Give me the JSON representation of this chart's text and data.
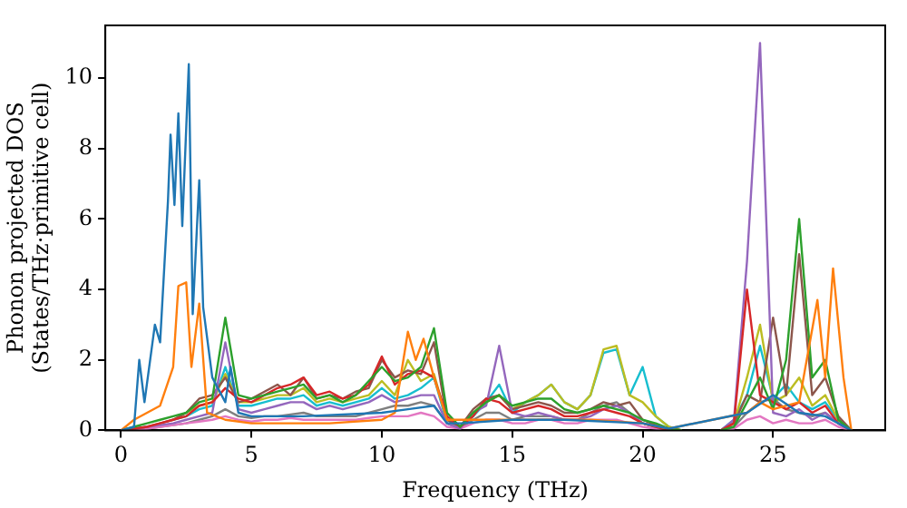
{
  "chart_data": {
    "type": "line",
    "xlabel": "Frequency (THz)",
    "ylabel": "Phonon projected DOS\n(States/THz·primitive cell)",
    "xlim": [
      -0.6,
      29.3
    ],
    "ylim": [
      0,
      11.5
    ],
    "xticks": [
      0,
      5,
      10,
      15,
      20,
      25
    ],
    "yticks": [
      0,
      2,
      4,
      6,
      8,
      10
    ],
    "x": [
      0,
      0.5,
      1,
      1.5,
      2,
      2.5,
      3,
      3.5,
      4,
      4.5,
      5,
      5.5,
      6,
      6.5,
      7,
      7.5,
      8,
      8.5,
      9,
      9.5,
      10,
      10.5,
      11,
      11.5,
      12,
      12.5,
      13,
      13.5,
      14,
      14.5,
      15,
      15.5,
      16,
      16.5,
      17,
      17.5,
      18,
      18.5,
      19,
      19.5,
      20,
      20.5,
      21,
      21.5,
      22,
      22.5,
      23,
      23.5,
      24,
      24.5,
      25,
      25.5,
      26,
      26.5,
      27,
      27.5,
      28
    ],
    "series": [
      {
        "color": "#1f77b4",
        "x": [
          0,
          0.5,
          0.7,
          0.9,
          1.3,
          1.5,
          1.8,
          1.9,
          2.05,
          2.2,
          2.35,
          2.6,
          2.75,
          3.0,
          3.15,
          3.5,
          4.0,
          4.2,
          4.5,
          5,
          7,
          10,
          11,
          12,
          12.5,
          13,
          15,
          17,
          20,
          21,
          24,
          25,
          26,
          27,
          28
        ],
        "values": [
          0,
          0.1,
          2.0,
          0.8,
          3.0,
          2.5,
          6.5,
          8.4,
          6.4,
          9.0,
          5.8,
          10.4,
          3.3,
          7.1,
          3.5,
          1.5,
          0.8,
          1.8,
          0.5,
          0.4,
          0.4,
          0.5,
          0.6,
          0.7,
          0.2,
          0.2,
          0.3,
          0.3,
          0.2,
          0.05,
          0.5,
          1.0,
          0.5,
          0.4,
          0
        ]
      },
      {
        "color": "#ff7f0e",
        "x": [
          0,
          0.5,
          1.0,
          1.5,
          2.0,
          2.2,
          2.5,
          2.7,
          3.0,
          3.3,
          4,
          5,
          8,
          10,
          10.5,
          11,
          11.3,
          11.6,
          12,
          12.5,
          14,
          16,
          18,
          20,
          21,
          24,
          24.5,
          25,
          26,
          26.7,
          27,
          27.3,
          27.7,
          28
        ],
        "values": [
          0,
          0.3,
          0.5,
          0.7,
          1.8,
          4.1,
          4.2,
          1.8,
          3.6,
          0.5,
          0.3,
          0.2,
          0.2,
          0.3,
          0.5,
          2.8,
          2.0,
          2.6,
          1.5,
          0.3,
          0.3,
          0.3,
          0.3,
          0.2,
          0.05,
          0.5,
          0.8,
          0.6,
          0.8,
          3.7,
          1.5,
          4.6,
          1.5,
          0
        ]
      },
      {
        "color": "#2ca02c",
        "values": [
          0,
          0.1,
          0.2,
          0.3,
          0.4,
          0.5,
          0.8,
          0.9,
          3.2,
          1.0,
          0.9,
          1.0,
          1.1,
          1.2,
          1.3,
          0.9,
          1.0,
          0.8,
          1.0,
          1.4,
          1.8,
          1.4,
          1.5,
          1.8,
          2.9,
          0.5,
          0.1,
          0.5,
          0.8,
          1.0,
          0.7,
          0.8,
          0.9,
          0.9,
          0.6,
          0.5,
          0.6,
          0.7,
          0.6,
          0.5,
          0.3,
          0.2,
          0.05,
          0,
          null,
          null,
          0,
          0.1,
          0.8,
          1.5,
          0.6,
          2.0,
          6.0,
          1.5,
          2.0,
          0.3,
          0
        ]
      },
      {
        "color": "#d62728",
        "values": [
          0,
          0.05,
          0.1,
          0.2,
          0.3,
          0.4,
          0.7,
          0.8,
          1.2,
          0.9,
          0.8,
          1.0,
          1.2,
          1.3,
          1.5,
          1.0,
          1.1,
          0.9,
          1.0,
          1.3,
          2.1,
          1.3,
          1.6,
          1.7,
          1.5,
          0.4,
          0.1,
          0.4,
          0.9,
          0.8,
          0.5,
          0.6,
          0.7,
          0.6,
          0.4,
          0.4,
          0.5,
          0.6,
          0.5,
          0.4,
          0.2,
          0.1,
          0,
          0,
          null,
          null,
          0,
          0.2,
          4.0,
          1.0,
          0.8,
          0.6,
          0.8,
          0.5,
          0.7,
          0.2,
          0
        ]
      },
      {
        "color": "#9467bd",
        "values": [
          0,
          0.05,
          0.1,
          0.15,
          0.2,
          0.3,
          0.4,
          0.5,
          2.5,
          0.6,
          0.5,
          0.6,
          0.7,
          0.8,
          0.8,
          0.6,
          0.7,
          0.6,
          0.7,
          0.8,
          1.0,
          0.8,
          0.9,
          1.0,
          1.0,
          0.2,
          0.05,
          0.5,
          0.7,
          2.4,
          0.5,
          0.4,
          0.5,
          0.4,
          0.3,
          0.3,
          0.4,
          0.6,
          0.7,
          0.5,
          0.2,
          0.1,
          0,
          0,
          null,
          null,
          0,
          0.3,
          4.8,
          11.0,
          0.5,
          0.4,
          0.6,
          0.3,
          0.5,
          0.2,
          0
        ]
      },
      {
        "color": "#8c564b",
        "values": [
          0,
          0.05,
          0.1,
          0.2,
          0.3,
          0.5,
          0.9,
          1.0,
          1.5,
          0.8,
          0.9,
          1.1,
          1.3,
          1.0,
          1.5,
          0.9,
          1.0,
          0.9,
          1.1,
          1.2,
          2.0,
          1.5,
          1.7,
          1.6,
          2.5,
          0.3,
          0.1,
          0.6,
          0.9,
          1.0,
          0.6,
          0.7,
          0.8,
          0.7,
          0.5,
          0.5,
          0.6,
          0.8,
          0.7,
          0.8,
          0.3,
          0.15,
          0.05,
          0,
          null,
          null,
          0,
          0.2,
          1.0,
          0.8,
          3.2,
          1.0,
          5.0,
          1.0,
          1.5,
          0.4,
          0
        ]
      },
      {
        "color": "#e377c2",
        "values": [
          0,
          0.02,
          0.05,
          0.1,
          0.15,
          0.2,
          0.25,
          0.3,
          0.4,
          0.3,
          0.25,
          0.3,
          0.3,
          0.35,
          0.3,
          0.3,
          0.3,
          0.3,
          0.3,
          0.35,
          0.4,
          0.4,
          0.4,
          0.5,
          0.4,
          0.1,
          0.05,
          0.2,
          0.3,
          0.3,
          0.2,
          0.2,
          0.3,
          0.3,
          0.2,
          0.2,
          0.3,
          0.3,
          0.3,
          0.2,
          0.1,
          0.05,
          0,
          0,
          null,
          null,
          0,
          0.05,
          0.3,
          0.4,
          0.2,
          0.3,
          0.2,
          0.2,
          0.3,
          0.1,
          0
        ]
      },
      {
        "color": "#7f7f7f",
        "values": [
          0,
          0.02,
          0.05,
          0.1,
          0.15,
          0.2,
          0.3,
          0.4,
          0.6,
          0.4,
          0.35,
          0.4,
          0.4,
          0.45,
          0.5,
          0.4,
          0.4,
          0.4,
          0.4,
          0.5,
          0.6,
          0.7,
          0.7,
          0.8,
          0.7,
          0.2,
          0.05,
          0.3,
          0.5,
          0.5,
          0.3,
          0.4,
          0.4,
          0.4,
          0.3,
          0.3,
          0.5,
          0.7,
          0.8,
          0.5,
          0.2,
          0.1,
          0,
          0,
          null,
          null,
          0,
          0.1,
          0.5,
          0.8,
          0.9,
          0.6,
          0.5,
          0.4,
          0.5,
          0.2,
          0
        ]
      },
      {
        "color": "#bcbd22",
        "values": [
          null,
          null,
          null,
          null,
          0.3,
          0.5,
          0.7,
          0.8,
          1.6,
          0.8,
          0.8,
          0.9,
          1.0,
          1.0,
          1.2,
          0.8,
          0.9,
          0.8,
          0.9,
          1.0,
          1.4,
          1.0,
          2.0,
          1.4,
          1.6,
          0.3,
          0.05,
          0.5,
          0.8,
          1.0,
          0.6,
          0.8,
          1.0,
          1.3,
          0.8,
          0.6,
          1.0,
          2.3,
          2.4,
          1.0,
          0.8,
          0.4,
          0.1,
          0,
          null,
          null,
          0,
          0.2,
          1.5,
          3.0,
          0.8,
          1.0,
          1.5,
          0.7,
          1.0,
          0.3,
          0
        ]
      },
      {
        "color": "#17becf",
        "values": [
          null,
          null,
          null,
          null,
          0.3,
          0.4,
          0.6,
          0.7,
          1.8,
          0.7,
          0.7,
          0.8,
          0.9,
          0.9,
          1.0,
          0.7,
          0.8,
          0.7,
          0.8,
          0.9,
          1.2,
          0.9,
          1.0,
          1.2,
          1.5,
          0.2,
          0.05,
          0.4,
          0.8,
          1.3,
          0.5,
          0.8,
          1.0,
          1.3,
          0.8,
          0.6,
          1.0,
          2.2,
          2.3,
          1.0,
          1.8,
          0.4,
          0.1,
          0,
          null,
          null,
          0,
          0.3,
          1.0,
          2.4,
          0.9,
          1.3,
          0.8,
          0.6,
          0.8,
          0.3,
          0
        ]
      }
    ]
  }
}
